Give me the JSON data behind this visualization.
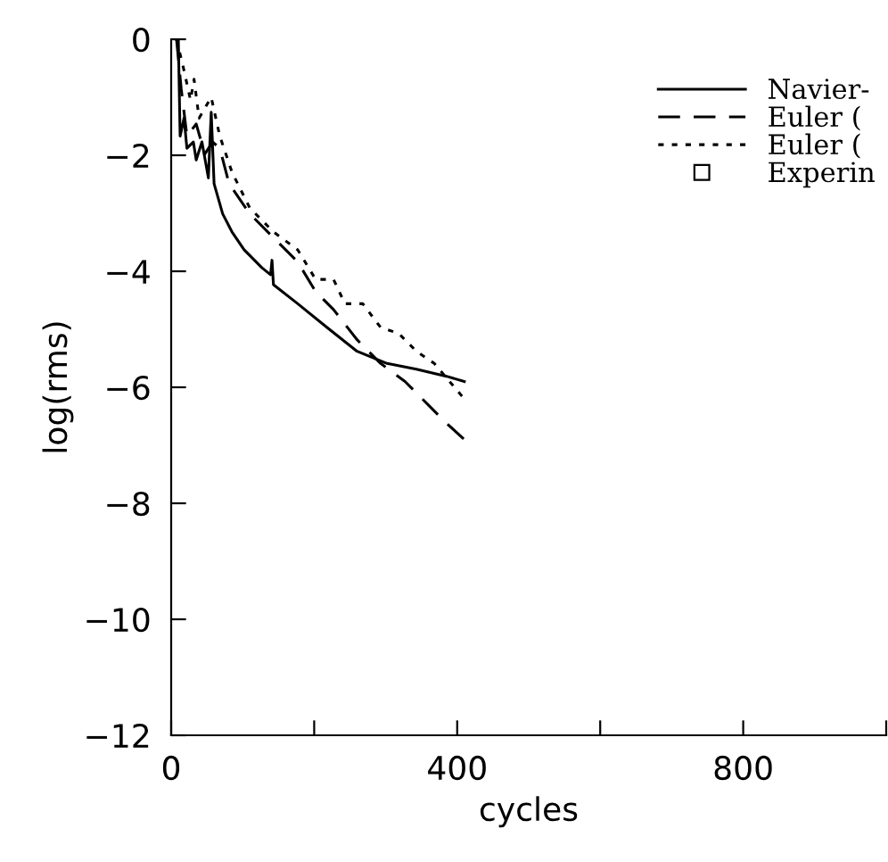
{
  "chart_data": {
    "type": "line",
    "xlabel": "cycles",
    "ylabel": "log(rms)",
    "xlim": [
      0,
      1000
    ],
    "ylim": [
      -12,
      0
    ],
    "xticks": [
      0,
      {
        "value": 200,
        "label": null
      },
      400,
      {
        "value": 600,
        "label": null
      },
      800,
      {
        "value": 1000,
        "label": null
      }
    ],
    "yticks": [
      {
        "value": 0,
        "label": "0"
      },
      {
        "value": -2,
        "label": "−2"
      },
      {
        "value": -4,
        "label": "−4"
      },
      {
        "value": -6,
        "label": "−6"
      },
      {
        "value": -8,
        "label": "−8"
      },
      {
        "value": -10,
        "label": "−10"
      },
      {
        "value": -12,
        "label": "−12"
      }
    ],
    "grid": false,
    "legend": "top right",
    "marker": "none",
    "series": [
      {
        "name": "Navier-",
        "color": "#000000",
        "line_style": "solid",
        "x": [
          7.5,
          10,
          12.5,
          18,
          22,
          31,
          35,
          43,
          52,
          56,
          60,
          72,
          85,
          102,
          127,
          139,
          141,
          143,
          177,
          218,
          260,
          302,
          343,
          385,
          410
        ],
        "values": [
          0,
          0,
          -1.67,
          -1.36,
          -1.88,
          -1.77,
          -2.08,
          -1.77,
          -2.39,
          -1.26,
          -2.49,
          -3.01,
          -3.32,
          -3.63,
          -3.94,
          -4.06,
          -3.81,
          -4.23,
          -4.56,
          -4.97,
          -5.38,
          -5.59,
          -5.69,
          -5.81,
          -5.9
        ]
      },
      {
        "name": "Euler (",
        "color": "#000000",
        "line_style": "dashed",
        "x": [
          7.5,
          14,
          22,
          35,
          47,
          58,
          68,
          81,
          110,
          143,
          177,
          202,
          227,
          260,
          293,
          327,
          360,
          385,
          410
        ],
        "values": [
          0,
          -0.85,
          -1.67,
          -1.46,
          -1.98,
          -1.77,
          -1.88,
          -2.49,
          -3.01,
          -3.42,
          -3.84,
          -4.35,
          -4.66,
          -5.18,
          -5.59,
          -5.9,
          -6.31,
          -6.62,
          -6.9
        ]
      },
      {
        "name": "Euler (",
        "color": "#000000",
        "line_style": "dotted",
        "x": [
          7.5,
          18,
          27,
          32,
          39,
          56,
          68,
          85,
          110,
          143,
          177,
          202,
          227,
          243,
          268,
          293,
          318,
          343,
          368,
          410
        ],
        "values": [
          0,
          -0.54,
          -1.05,
          -0.69,
          -1.36,
          -1.0,
          -1.67,
          -2.29,
          -2.91,
          -3.32,
          -3.63,
          -4.14,
          -4.14,
          -4.56,
          -4.56,
          -4.97,
          -5.07,
          -5.38,
          -5.59,
          -6.2
        ]
      },
      {
        "name": "Experin",
        "color": "#000000",
        "type": "scatter",
        "marker": "square"
      }
    ]
  }
}
